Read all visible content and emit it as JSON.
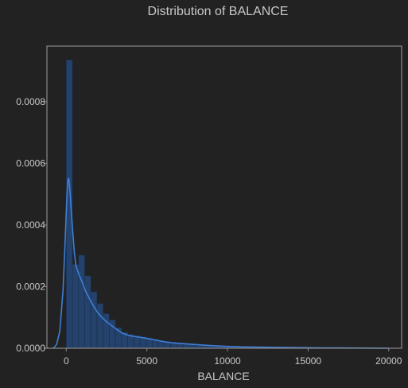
{
  "chart_data": {
    "type": "histogram",
    "title": "Distribution of BALANCE",
    "xlabel": "BALANCE",
    "ylabel": "",
    "xlim": [
      -1200,
      20800
    ],
    "ylim": [
      0,
      0.00098
    ],
    "xticks": [
      0,
      5000,
      10000,
      15000,
      20000
    ],
    "xtick_labels": [
      "0",
      "5000",
      "10000",
      "15000",
      "20000"
    ],
    "yticks": [
      0,
      0.0002,
      0.0004,
      0.0006,
      0.0008
    ],
    "ytick_labels": [
      "0.0000",
      "0.0002",
      "0.0004",
      "0.0006",
      "0.0008"
    ],
    "grid": false,
    "colors": {
      "background": "#222222",
      "bar_fill": "#24426b",
      "bar_edge": "#1a2f4d",
      "kde_line": "#3f7fd6",
      "frame": "#8a8a8a",
      "text": "#c8c8c8"
    },
    "histogram": {
      "bin_edges": [
        0,
        381,
        762,
        1143,
        1524,
        1905,
        2286,
        2667,
        3048,
        3429,
        3810,
        4191,
        4572,
        4953,
        5334,
        5715,
        6096,
        6477,
        6858,
        7239,
        7620,
        8001,
        8382,
        8763,
        9144,
        9525,
        9906,
        10287,
        10668,
        11049,
        11430,
        11811,
        12192,
        12573,
        12954,
        13335,
        13716,
        14097,
        14478,
        14859,
        15240,
        15621,
        16002,
        16383,
        16764,
        17145,
        17526,
        17907,
        18288,
        18669,
        19050
      ],
      "density": [
        0.000935,
        0.000272,
        0.000302,
        0.000235,
        0.000183,
        0.000145,
        0.000112,
        9.2e-05,
        6.7e-05,
        5.2e-05,
        4.5e-05,
        4.1e-05,
        3.7e-05,
        3.3e-05,
        2.9e-05,
        2.5e-05,
        2.2e-05,
        1.9e-05,
        1.6e-05,
        1.4e-05,
        1.2e-05,
        1e-05,
        8.5e-06,
        7e-06,
        6e-06,
        5e-06,
        4.5e-06,
        4e-06,
        3.5e-06,
        3e-06,
        2.7e-06,
        2.4e-06,
        2.1e-06,
        1.9e-06,
        1.7e-06,
        1.5e-06,
        1.3e-06,
        1.2e-06,
        1.1e-06,
        1e-06,
        9e-07,
        8e-07,
        7e-07,
        6e-07,
        5e-07,
        4e-07,
        4e-07,
        3e-07,
        3e-07,
        2e-07
      ]
    },
    "kde": {
      "x": [
        -800,
        -600,
        -400,
        -200,
        -100,
        0,
        50,
        100,
        150,
        200,
        250,
        300,
        400,
        500,
        600,
        800,
        1000,
        1200,
        1400,
        1600,
        1800,
        2000,
        2300,
        2600,
        3000,
        3500,
        4000,
        4500,
        5000,
        5500,
        6000,
        6500,
        7000,
        7500,
        8000,
        9000,
        10000,
        11000,
        12000,
        13000,
        14000,
        15000,
        16000,
        17000,
        18000,
        19000,
        20000
      ],
      "y": [
        0.0,
        1.2e-05,
        5.5e-05,
        0.00019,
        0.00031,
        0.00044,
        0.0005,
        0.000545,
        0.000552,
        0.00053,
        0.000495,
        0.00045,
        0.00038,
        0.00031,
        0.000268,
        0.000238,
        0.000213,
        0.000185,
        0.000165,
        0.000145,
        0.000128,
        0.000112,
        9.5e-05,
        8.2e-05,
        6.6e-05,
        4.8e-05,
        4e-05,
        3.6e-05,
        3.2e-05,
        2.7e-05,
        2.2e-05,
        1.8e-05,
        1.6e-05,
        1.4e-05,
        1.2e-05,
        8.5e-06,
        6e-06,
        4.5e-06,
        3.5e-06,
        2.8e-06,
        2.2e-06,
        1.8e-06,
        1.4e-06,
        1.1e-06,
        8e-07,
        5e-07,
        0.0
      ]
    }
  }
}
